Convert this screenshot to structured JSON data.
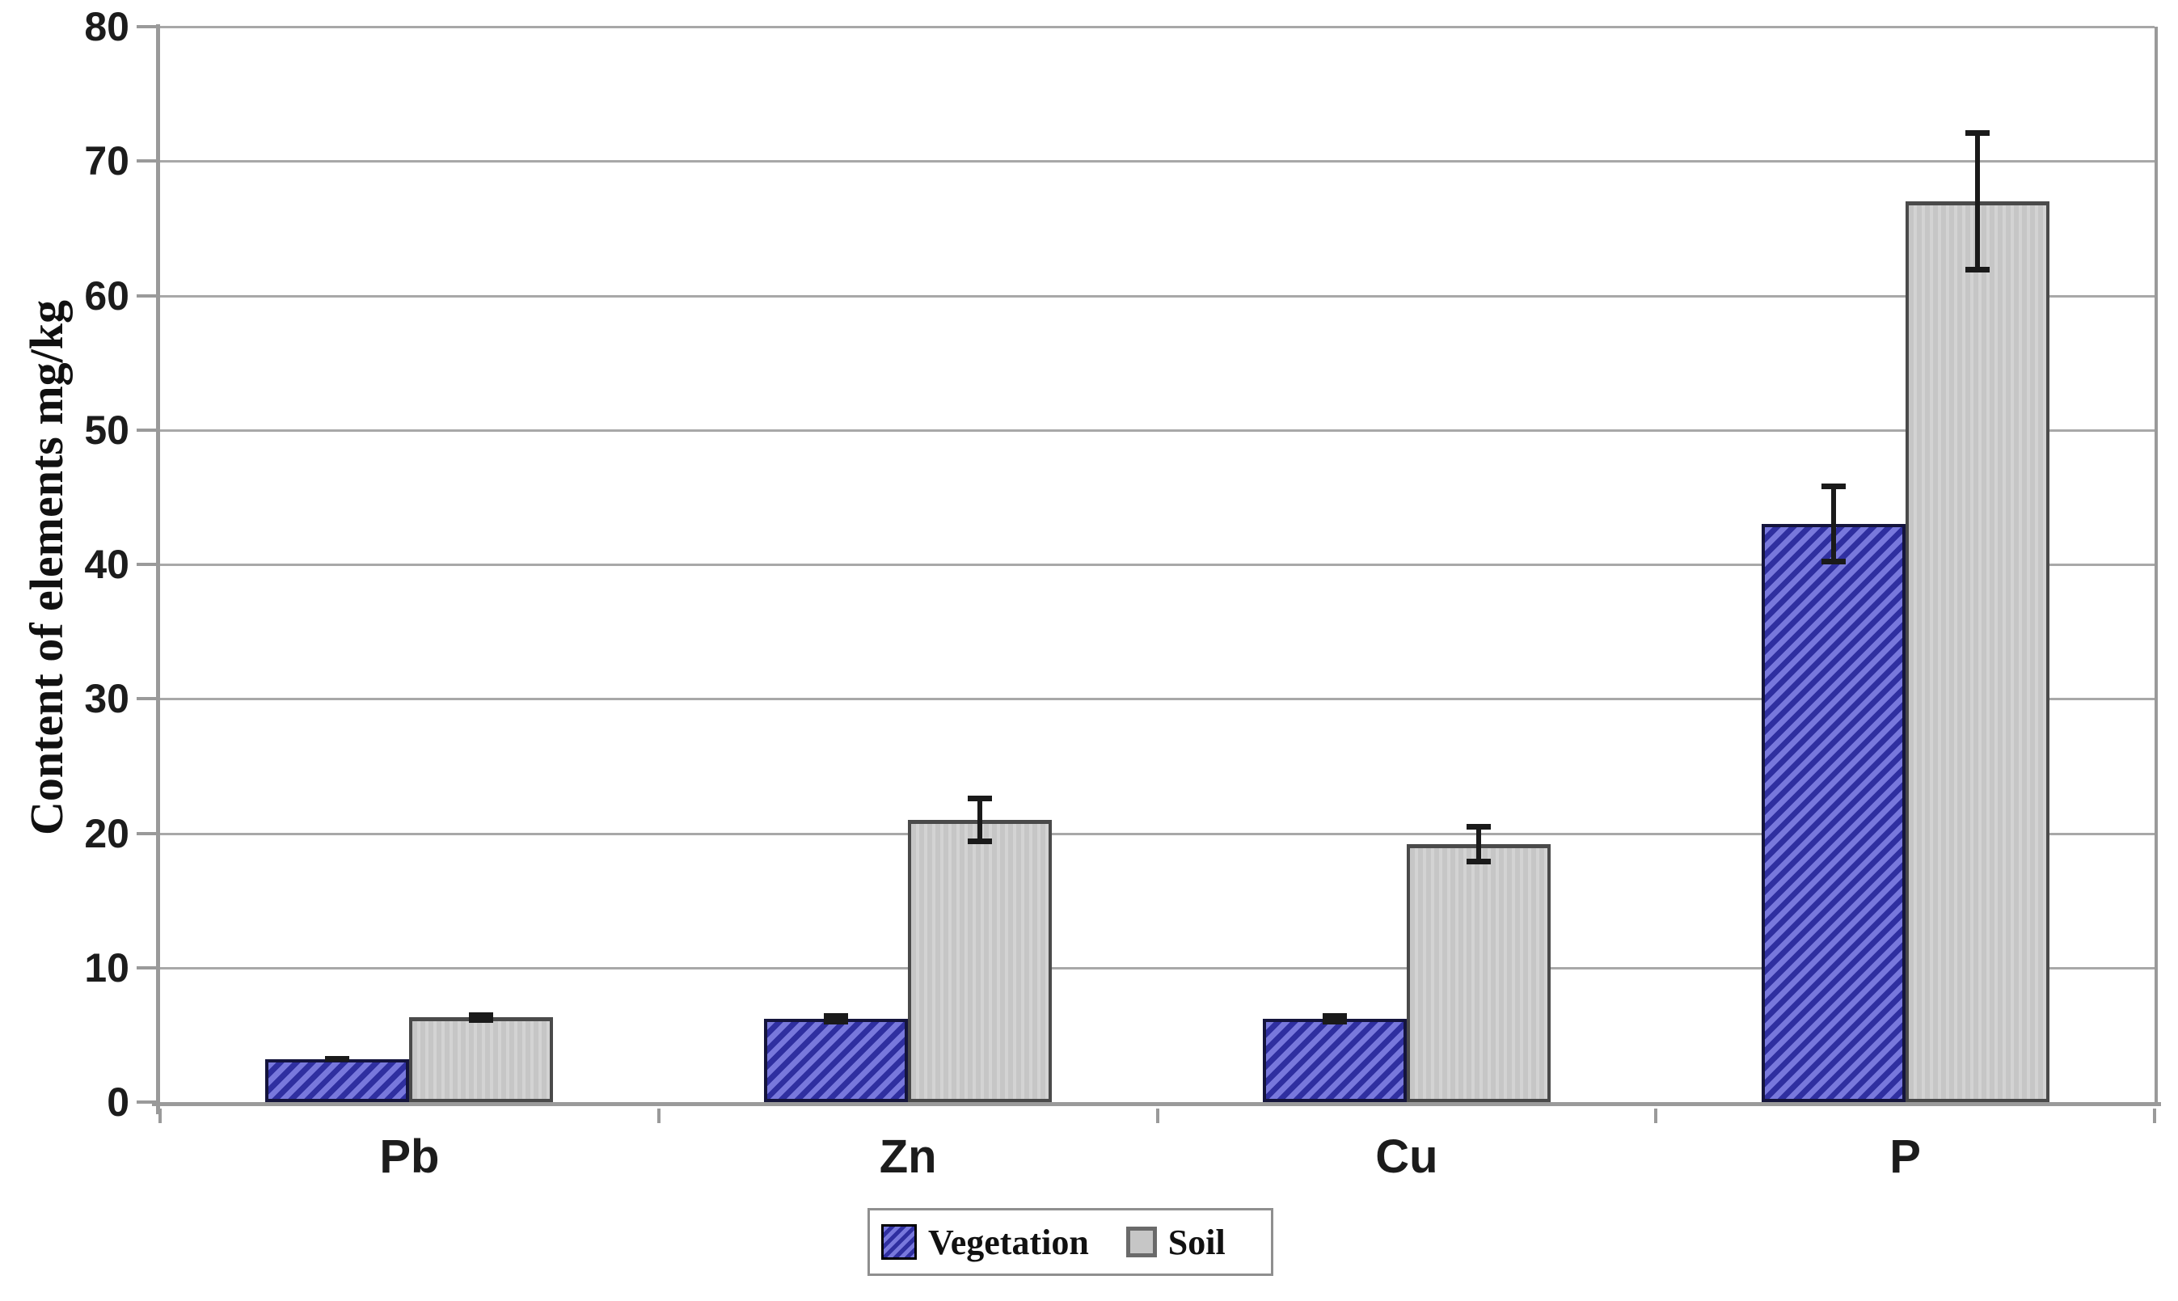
{
  "chart_data": {
    "type": "bar",
    "title": "",
    "categories": [
      "Pb",
      "Zn",
      "Cu",
      "P"
    ],
    "series": [
      {
        "name": "Vegetation",
        "values": [
          3.2,
          6.2,
          6.2,
          43
        ],
        "errors": [
          0.2,
          0.4,
          0.4,
          3
        ],
        "style": "blue-diagonal-hatch"
      },
      {
        "name": "Soil",
        "values": [
          6.3,
          21,
          19.2,
          67
        ],
        "errors": [
          0.4,
          1.8,
          1.5,
          5.3
        ],
        "style": "light-gray-vertical-stripe"
      }
    ],
    "xlabel": "",
    "ylabel": "Content of elements mg/kg",
    "ylim": [
      0,
      80
    ],
    "yticks": [
      0,
      10,
      20,
      30,
      40,
      50,
      60,
      70,
      80
    ],
    "grid": true,
    "error_bars": true,
    "legend_position": "bottom-center",
    "colors": {
      "vegetation_fill_light": "#7878dc",
      "vegetation_fill_dark": "#2f2fa0",
      "soil_fill": "#c6c6c6",
      "soil_fill_stripe": "#d3d3d3",
      "soil_border": "#4a4a4a",
      "gridline": "#a8a8a8",
      "axis": "#9a9a9a",
      "text": "#1c1c1c",
      "background": "#ffffff"
    }
  }
}
